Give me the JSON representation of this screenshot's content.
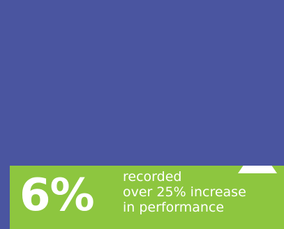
{
  "stat": {
    "figure": "6%",
    "lines": [
      "recorded",
      "over 25% increase",
      "in performance"
    ],
    "indicator_icon": "up-triangle-icon"
  },
  "colors": {
    "top_background": "#4a55a0",
    "band_background": "#8dc63f",
    "text": "#ffffff"
  }
}
